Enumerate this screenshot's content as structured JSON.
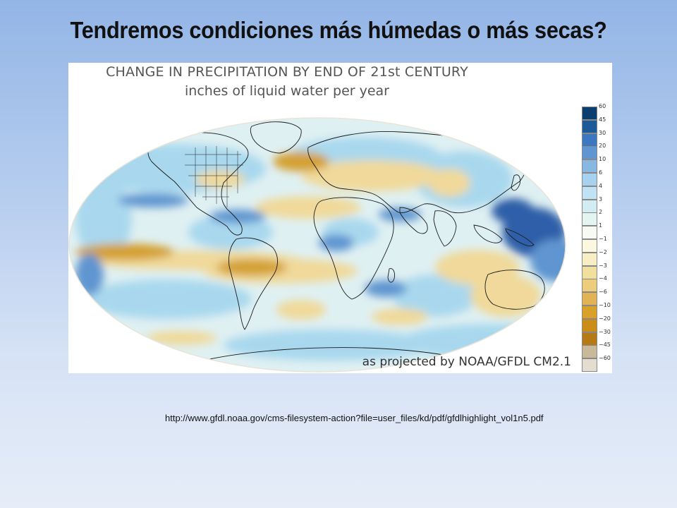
{
  "slide": {
    "title": "Tendremos condiciones más húmedas o más secas?",
    "source_url": "http://www.gfdl.noaa.gov/cms-filesystem-action?file=user_files/kd/pdf/gfdlhighlight_vol1n5.pdf"
  },
  "map": {
    "title": "CHANGE IN PRECIPITATION BY END OF 21st CENTURY",
    "subtitle": "inches of liquid water per year",
    "credit": "as projected by NOAA/GFDL CM2.1",
    "projection": "Mollweide (ellipse)",
    "legend": {
      "labels": [
        "60",
        "45",
        "30",
        "20",
        "10",
        "6",
        "4",
        "3",
        "2",
        "1",
        "−1",
        "−2",
        "−3",
        "−4",
        "−6",
        "−10",
        "−20",
        "−30",
        "−45",
        "−60"
      ],
      "colors": [
        "#0b3e6e",
        "#1d5a9a",
        "#3b78c0",
        "#5f95d0",
        "#88b7e2",
        "#a6d2ef",
        "#bfe3f2",
        "#d2ecf1",
        "#e4f4f0",
        "#f6faf2",
        "#fbf8df",
        "#f7efc3",
        "#f1e09d",
        "#ebcd7b",
        "#e2b354",
        "#d9a12a",
        "#c98d18",
        "#b57a16",
        "#c8b99a",
        "#e3ddd0"
      ]
    },
    "colors": {
      "ocean_base": "#dff0f2",
      "wet_light": "#a9d8ee",
      "wet_strong": "#2e5fa8",
      "dry_light": "#f0d99a",
      "dry_strong": "#d4a033",
      "coastline": "#1a1a1a"
    }
  }
}
